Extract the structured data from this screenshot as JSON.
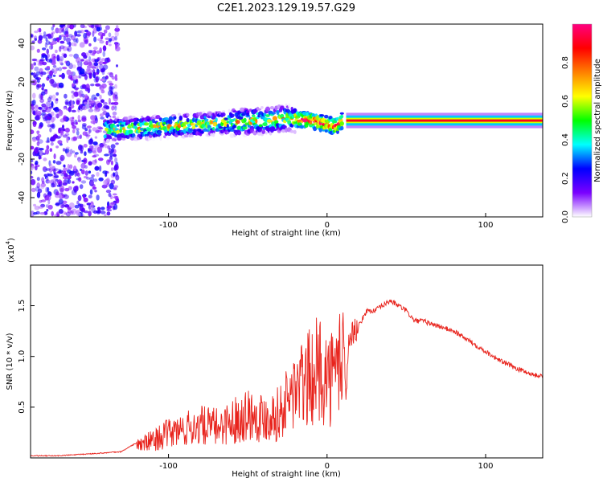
{
  "title": "C2E1.2023.129.19.57.G29",
  "chart_data": [
    {
      "type": "heatmap",
      "name": "spectrogram",
      "xlabel": "Height of straight line (km)",
      "ylabel": "Frequency (Hz)",
      "xlim": [
        -187,
        136
      ],
      "ylim": [
        -50,
        50
      ],
      "xticks": [
        -100,
        0,
        100
      ],
      "xtick_labels": [
        "-100",
        "0",
        "100"
      ],
      "yticks": [
        40,
        20,
        0,
        -20,
        -40
      ],
      "ytick_labels": [
        "40",
        "20",
        "0",
        "-20",
        "-40"
      ],
      "colorbar": {
        "label": "Normalized spectral amplitude",
        "range": [
          0,
          1
        ],
        "ticks": [
          0.0,
          0.2,
          0.4,
          0.6,
          0.8
        ],
        "tick_labels": [
          "0.0",
          "0.2",
          "0.4",
          "0.6",
          "0.8"
        ],
        "colors": [
          "#ffffff",
          "#7a00ff",
          "#0000ff",
          "#00ffff",
          "#00ff00",
          "#ffff00",
          "#ff8000",
          "#ff0000",
          "#ff0080"
        ]
      },
      "ridge": {
        "x": [
          -140,
          -120,
          -100,
          -80,
          -60,
          -40,
          -25,
          -10,
          0,
          5,
          10,
          15,
          40,
          80,
          120,
          136
        ],
        "freq": [
          -5,
          -4,
          -3,
          -2,
          -1,
          0,
          1,
          0,
          -2,
          -3,
          0,
          0,
          0,
          0,
          0,
          0
        ]
      }
    },
    {
      "type": "line",
      "name": "snr",
      "xlabel": "Height of straight line (km)",
      "ylabel": "SNR (10 * v/v)",
      "multiplier_label": "(x10",
      "multiplier_exp": "4",
      "xlim": [
        -187,
        136
      ],
      "ylim": [
        0,
        1.9
      ],
      "xticks": [
        -100,
        0,
        100
      ],
      "xtick_labels": [
        "-100",
        "0",
        "100"
      ],
      "yticks": [
        0.5,
        1.0,
        1.5
      ],
      "ytick_labels": [
        "0.5",
        "1.0",
        "1.5"
      ],
      "color": "#e8231c",
      "series": [
        {
          "name": "SNR",
          "x": [
            -187,
            -170,
            -150,
            -130,
            -120,
            -112,
            -100,
            -90,
            -80,
            -70,
            -60,
            -50,
            -40,
            -30,
            -20,
            -15,
            -10,
            -5,
            0,
            5,
            10,
            12,
            14,
            20,
            25,
            30,
            35,
            40,
            45,
            50,
            55,
            60,
            70,
            80,
            90,
            100,
            110,
            120,
            130,
            136
          ],
          "y": [
            0.02,
            0.02,
            0.04,
            0.06,
            0.15,
            0.2,
            0.3,
            0.35,
            0.4,
            0.38,
            0.45,
            0.55,
            0.5,
            0.55,
            0.85,
            0.9,
            1.0,
            1.1,
            1.0,
            1.0,
            1.4,
            0.6,
            1.2,
            1.3,
            1.45,
            1.45,
            1.5,
            1.55,
            1.5,
            1.45,
            1.35,
            1.35,
            1.3,
            1.25,
            1.15,
            1.05,
            0.95,
            0.88,
            0.82,
            0.8
          ]
        }
      ]
    }
  ]
}
